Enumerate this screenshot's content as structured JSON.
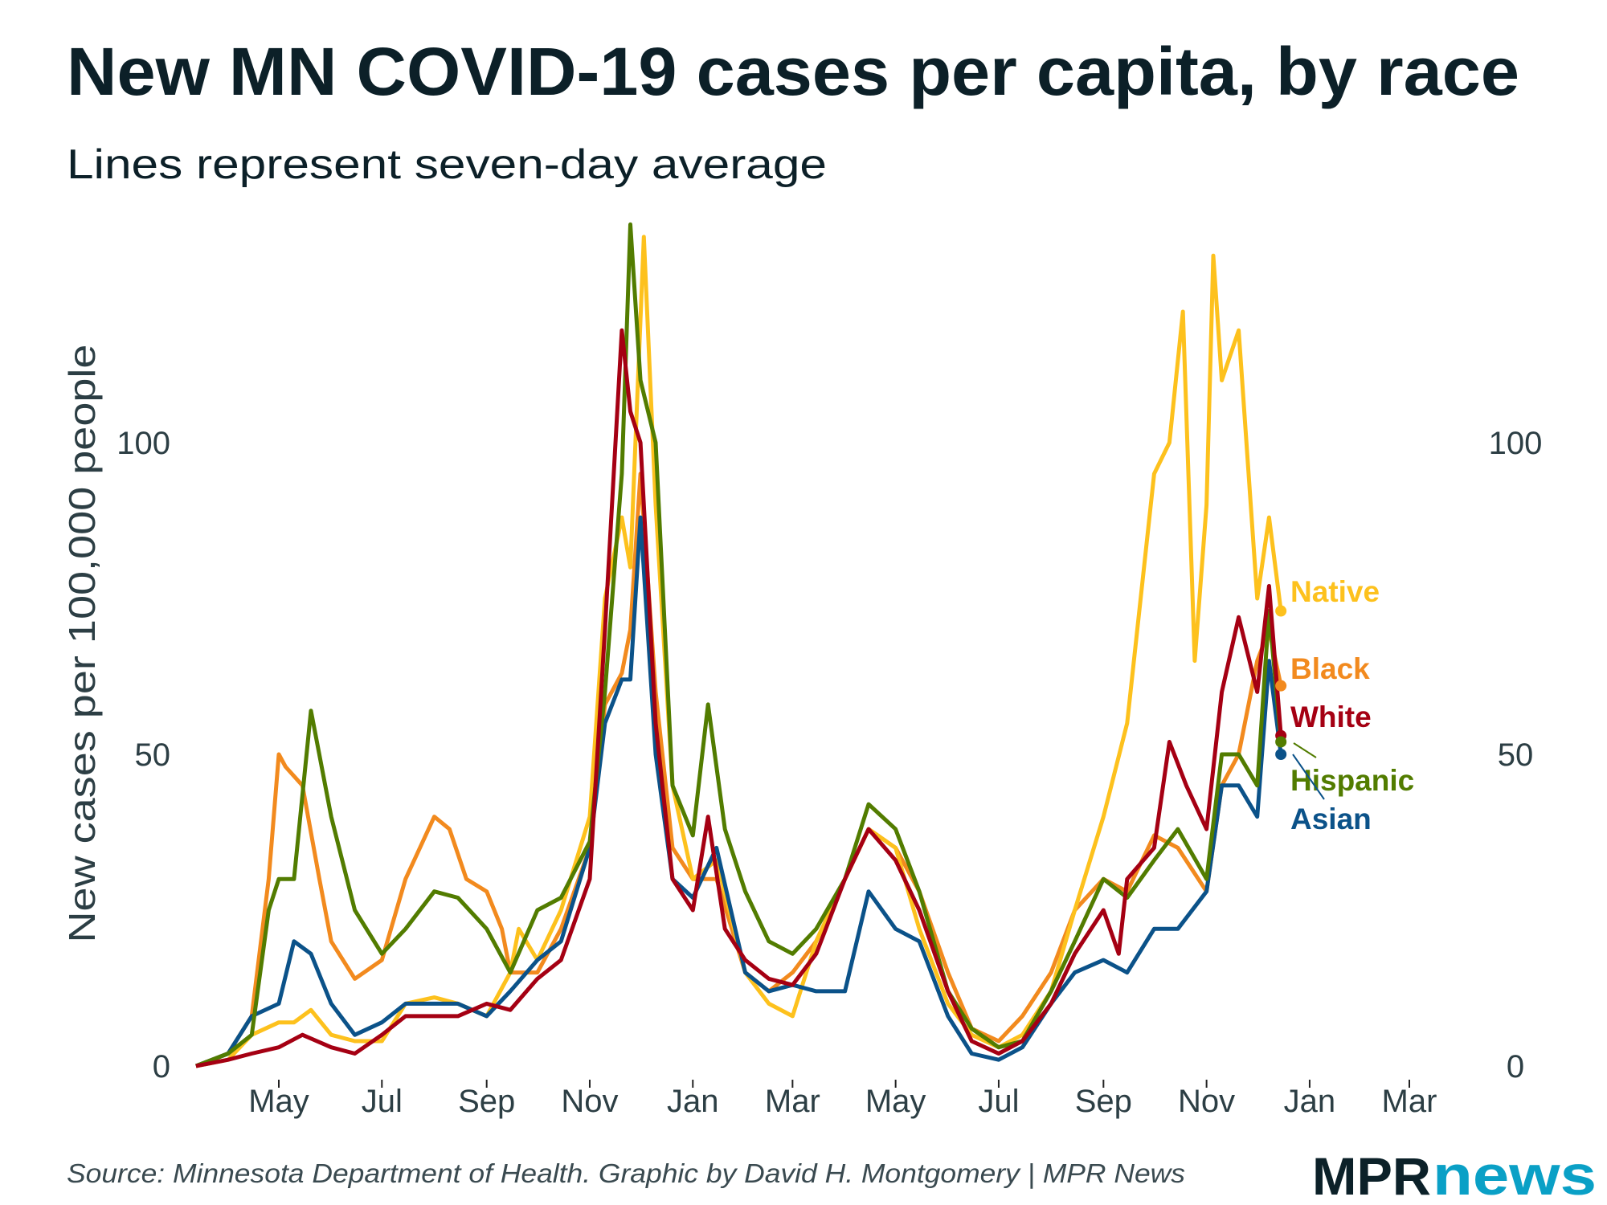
{
  "chart_data": {
    "type": "line",
    "title": "New MN COVID-19 cases per capita, by race",
    "subtitle": "Lines represent seven-day average",
    "ylabel": "New cases per 100,000 people",
    "xlabel": "",
    "ylim": [
      0,
      135
    ],
    "xlim": [
      "2020-03-13",
      "2022-03-31"
    ],
    "y_ticks": [
      "0",
      "50",
      "100"
    ],
    "y_tick_values": [
      0,
      50,
      100
    ],
    "x_ticks": [
      {
        "date": "2020-05-01",
        "label": "May"
      },
      {
        "date": "2020-07-01",
        "label": "Jul"
      },
      {
        "date": "2020-09-01",
        "label": "Sep"
      },
      {
        "date": "2020-11-01",
        "label": "Nov"
      },
      {
        "date": "2021-01-01",
        "label": "Jan"
      },
      {
        "date": "2021-03-01",
        "label": "Mar"
      },
      {
        "date": "2021-05-01",
        "label": "May"
      },
      {
        "date": "2021-07-01",
        "label": "Jul"
      },
      {
        "date": "2021-09-01",
        "label": "Sep"
      },
      {
        "date": "2021-11-01",
        "label": "Nov"
      },
      {
        "date": "2022-01-01",
        "label": "Jan"
      },
      {
        "date": "2022-03-01",
        "label": "Mar"
      }
    ],
    "grid": false,
    "legend": "direct labels at line ends (right)",
    "series": [
      {
        "name": "Native",
        "color": "#fdc11d",
        "points": [
          [
            "2020-03-13",
            0
          ],
          [
            "2020-04-01",
            1
          ],
          [
            "2020-04-15",
            5
          ],
          [
            "2020-05-01",
            7
          ],
          [
            "2020-05-10",
            7
          ],
          [
            "2020-05-20",
            9
          ],
          [
            "2020-06-01",
            5
          ],
          [
            "2020-06-15",
            4
          ],
          [
            "2020-07-01",
            4
          ],
          [
            "2020-07-15",
            10
          ],
          [
            "2020-08-01",
            11
          ],
          [
            "2020-08-15",
            10
          ],
          [
            "2020-09-01",
            8
          ],
          [
            "2020-09-15",
            15
          ],
          [
            "2020-09-20",
            22
          ],
          [
            "2020-10-01",
            17
          ],
          [
            "2020-10-15",
            25
          ],
          [
            "2020-11-01",
            40
          ],
          [
            "2020-11-10",
            75
          ],
          [
            "2020-11-20",
            88
          ],
          [
            "2020-11-25",
            80
          ],
          [
            "2020-12-03",
            133
          ],
          [
            "2020-12-10",
            90
          ],
          [
            "2020-12-20",
            45
          ],
          [
            "2021-01-01",
            30
          ],
          [
            "2021-01-15",
            33
          ],
          [
            "2021-02-01",
            15
          ],
          [
            "2021-02-15",
            10
          ],
          [
            "2021-03-01",
            8
          ],
          [
            "2021-03-15",
            20
          ],
          [
            "2021-04-01",
            30
          ],
          [
            "2021-04-15",
            38
          ],
          [
            "2021-05-01",
            35
          ],
          [
            "2021-05-15",
            22
          ],
          [
            "2021-06-01",
            10
          ],
          [
            "2021-06-15",
            5
          ],
          [
            "2021-07-01",
            3
          ],
          [
            "2021-07-15",
            5
          ],
          [
            "2021-08-01",
            12
          ],
          [
            "2021-08-15",
            25
          ],
          [
            "2021-09-01",
            40
          ],
          [
            "2021-09-15",
            55
          ],
          [
            "2021-10-01",
            95
          ],
          [
            "2021-10-10",
            100
          ],
          [
            "2021-10-18",
            121
          ],
          [
            "2021-10-25",
            65
          ],
          [
            "2021-11-01",
            90
          ],
          [
            "2021-11-05",
            130
          ],
          [
            "2021-11-10",
            110
          ],
          [
            "2021-11-20",
            118
          ],
          [
            "2021-12-01",
            75
          ],
          [
            "2021-12-08",
            88
          ],
          [
            "2021-12-15",
            73
          ]
        ]
      },
      {
        "name": "Black",
        "color": "#f28a1e",
        "points": [
          [
            "2020-03-13",
            0
          ],
          [
            "2020-04-01",
            2
          ],
          [
            "2020-04-15",
            8
          ],
          [
            "2020-04-25",
            30
          ],
          [
            "2020-05-01",
            50
          ],
          [
            "2020-05-05",
            48
          ],
          [
            "2020-05-15",
            45
          ],
          [
            "2020-05-25",
            30
          ],
          [
            "2020-06-01",
            20
          ],
          [
            "2020-06-15",
            14
          ],
          [
            "2020-07-01",
            17
          ],
          [
            "2020-07-15",
            30
          ],
          [
            "2020-08-01",
            40
          ],
          [
            "2020-08-10",
            38
          ],
          [
            "2020-08-20",
            30
          ],
          [
            "2020-09-01",
            28
          ],
          [
            "2020-09-10",
            22
          ],
          [
            "2020-09-15",
            15
          ],
          [
            "2020-10-01",
            15
          ],
          [
            "2020-10-15",
            22
          ],
          [
            "2020-11-01",
            35
          ],
          [
            "2020-11-10",
            58
          ],
          [
            "2020-11-20",
            63
          ],
          [
            "2020-11-25",
            70
          ],
          [
            "2020-12-01",
            95
          ],
          [
            "2020-12-10",
            60
          ],
          [
            "2020-12-20",
            35
          ],
          [
            "2021-01-01",
            30
          ],
          [
            "2021-01-15",
            30
          ],
          [
            "2021-02-01",
            15
          ],
          [
            "2021-02-15",
            12
          ],
          [
            "2021-03-01",
            15
          ],
          [
            "2021-03-15",
            20
          ],
          [
            "2021-04-01",
            30
          ],
          [
            "2021-04-15",
            38
          ],
          [
            "2021-05-01",
            35
          ],
          [
            "2021-05-15",
            28
          ],
          [
            "2021-06-01",
            15
          ],
          [
            "2021-06-15",
            6
          ],
          [
            "2021-07-01",
            4
          ],
          [
            "2021-07-15",
            8
          ],
          [
            "2021-08-01",
            15
          ],
          [
            "2021-08-15",
            25
          ],
          [
            "2021-09-01",
            30
          ],
          [
            "2021-09-15",
            28
          ],
          [
            "2021-10-01",
            37
          ],
          [
            "2021-10-15",
            35
          ],
          [
            "2021-11-01",
            28
          ],
          [
            "2021-11-10",
            45
          ],
          [
            "2021-11-20",
            50
          ],
          [
            "2021-12-01",
            65
          ],
          [
            "2021-12-08",
            70
          ],
          [
            "2021-12-15",
            61
          ]
        ]
      },
      {
        "name": "White",
        "color": "#a50013",
        "points": [
          [
            "2020-03-13",
            0
          ],
          [
            "2020-04-01",
            1
          ],
          [
            "2020-04-15",
            2
          ],
          [
            "2020-05-01",
            3
          ],
          [
            "2020-05-15",
            5
          ],
          [
            "2020-06-01",
            3
          ],
          [
            "2020-06-15",
            2
          ],
          [
            "2020-07-01",
            5
          ],
          [
            "2020-07-15",
            8
          ],
          [
            "2020-08-01",
            8
          ],
          [
            "2020-08-15",
            8
          ],
          [
            "2020-09-01",
            10
          ],
          [
            "2020-09-15",
            9
          ],
          [
            "2020-10-01",
            14
          ],
          [
            "2020-10-15",
            17
          ],
          [
            "2020-11-01",
            30
          ],
          [
            "2020-11-10",
            70
          ],
          [
            "2020-11-20",
            118
          ],
          [
            "2020-11-25",
            105
          ],
          [
            "2020-12-01",
            100
          ],
          [
            "2020-12-10",
            55
          ],
          [
            "2020-12-20",
            30
          ],
          [
            "2021-01-01",
            25
          ],
          [
            "2021-01-10",
            40
          ],
          [
            "2021-01-20",
            22
          ],
          [
            "2021-02-01",
            17
          ],
          [
            "2021-02-15",
            14
          ],
          [
            "2021-03-01",
            13
          ],
          [
            "2021-03-15",
            18
          ],
          [
            "2021-04-01",
            30
          ],
          [
            "2021-04-15",
            38
          ],
          [
            "2021-05-01",
            33
          ],
          [
            "2021-05-15",
            25
          ],
          [
            "2021-06-01",
            12
          ],
          [
            "2021-06-15",
            4
          ],
          [
            "2021-07-01",
            2
          ],
          [
            "2021-07-15",
            4
          ],
          [
            "2021-08-01",
            10
          ],
          [
            "2021-08-15",
            18
          ],
          [
            "2021-09-01",
            25
          ],
          [
            "2021-09-10",
            18
          ],
          [
            "2021-09-15",
            30
          ],
          [
            "2021-10-01",
            35
          ],
          [
            "2021-10-10",
            52
          ],
          [
            "2021-10-20",
            45
          ],
          [
            "2021-11-01",
            38
          ],
          [
            "2021-11-10",
            60
          ],
          [
            "2021-11-20",
            72
          ],
          [
            "2021-12-01",
            60
          ],
          [
            "2021-12-08",
            77
          ],
          [
            "2021-12-15",
            53
          ]
        ]
      },
      {
        "name": "Hispanic",
        "color": "#527c00",
        "points": [
          [
            "2020-03-13",
            0
          ],
          [
            "2020-04-01",
            2
          ],
          [
            "2020-04-15",
            5
          ],
          [
            "2020-04-25",
            25
          ],
          [
            "2020-05-01",
            30
          ],
          [
            "2020-05-10",
            30
          ],
          [
            "2020-05-20",
            57
          ],
          [
            "2020-06-01",
            40
          ],
          [
            "2020-06-15",
            25
          ],
          [
            "2020-07-01",
            18
          ],
          [
            "2020-07-15",
            22
          ],
          [
            "2020-08-01",
            28
          ],
          [
            "2020-08-15",
            27
          ],
          [
            "2020-09-01",
            22
          ],
          [
            "2020-09-15",
            15
          ],
          [
            "2020-10-01",
            25
          ],
          [
            "2020-10-15",
            27
          ],
          [
            "2020-11-01",
            36
          ],
          [
            "2020-11-10",
            60
          ],
          [
            "2020-11-20",
            95
          ],
          [
            "2020-11-25",
            135
          ],
          [
            "2020-12-01",
            110
          ],
          [
            "2020-12-10",
            100
          ],
          [
            "2020-12-20",
            45
          ],
          [
            "2021-01-01",
            37
          ],
          [
            "2021-01-10",
            58
          ],
          [
            "2021-01-20",
            38
          ],
          [
            "2021-02-01",
            28
          ],
          [
            "2021-02-15",
            20
          ],
          [
            "2021-03-01",
            18
          ],
          [
            "2021-03-15",
            22
          ],
          [
            "2021-04-01",
            30
          ],
          [
            "2021-04-15",
            42
          ],
          [
            "2021-05-01",
            38
          ],
          [
            "2021-05-15",
            28
          ],
          [
            "2021-06-01",
            12
          ],
          [
            "2021-06-15",
            6
          ],
          [
            "2021-07-01",
            3
          ],
          [
            "2021-07-15",
            4
          ],
          [
            "2021-08-01",
            12
          ],
          [
            "2021-08-15",
            20
          ],
          [
            "2021-09-01",
            30
          ],
          [
            "2021-09-15",
            27
          ],
          [
            "2021-10-01",
            33
          ],
          [
            "2021-10-15",
            38
          ],
          [
            "2021-11-01",
            30
          ],
          [
            "2021-11-10",
            50
          ],
          [
            "2021-11-20",
            50
          ],
          [
            "2021-12-01",
            45
          ],
          [
            "2021-12-08",
            73
          ],
          [
            "2021-12-15",
            52
          ]
        ]
      },
      {
        "name": "Asian",
        "color": "#0b5289",
        "points": [
          [
            "2020-03-13",
            0
          ],
          [
            "2020-04-01",
            2
          ],
          [
            "2020-04-15",
            8
          ],
          [
            "2020-05-01",
            10
          ],
          [
            "2020-05-10",
            20
          ],
          [
            "2020-05-20",
            18
          ],
          [
            "2020-06-01",
            10
          ],
          [
            "2020-06-15",
            5
          ],
          [
            "2020-07-01",
            7
          ],
          [
            "2020-07-15",
            10
          ],
          [
            "2020-08-01",
            10
          ],
          [
            "2020-08-15",
            10
          ],
          [
            "2020-09-01",
            8
          ],
          [
            "2020-09-15",
            12
          ],
          [
            "2020-10-01",
            17
          ],
          [
            "2020-10-15",
            20
          ],
          [
            "2020-11-01",
            35
          ],
          [
            "2020-11-10",
            55
          ],
          [
            "2020-11-20",
            62
          ],
          [
            "2020-11-25",
            62
          ],
          [
            "2020-12-01",
            88
          ],
          [
            "2020-12-10",
            50
          ],
          [
            "2020-12-20",
            30
          ],
          [
            "2021-01-01",
            27
          ],
          [
            "2021-01-15",
            35
          ],
          [
            "2021-02-01",
            15
          ],
          [
            "2021-02-15",
            12
          ],
          [
            "2021-03-01",
            13
          ],
          [
            "2021-03-15",
            12
          ],
          [
            "2021-04-01",
            12
          ],
          [
            "2021-04-15",
            28
          ],
          [
            "2021-05-01",
            22
          ],
          [
            "2021-05-15",
            20
          ],
          [
            "2021-06-01",
            8
          ],
          [
            "2021-06-15",
            2
          ],
          [
            "2021-07-01",
            1
          ],
          [
            "2021-07-15",
            3
          ],
          [
            "2021-08-01",
            10
          ],
          [
            "2021-08-15",
            15
          ],
          [
            "2021-09-01",
            17
          ],
          [
            "2021-09-15",
            15
          ],
          [
            "2021-10-01",
            22
          ],
          [
            "2021-10-15",
            22
          ],
          [
            "2021-11-01",
            28
          ],
          [
            "2021-11-10",
            45
          ],
          [
            "2021-11-20",
            45
          ],
          [
            "2021-12-01",
            40
          ],
          [
            "2021-12-08",
            65
          ],
          [
            "2021-12-15",
            50
          ]
        ]
      }
    ]
  },
  "footer": {
    "source": "Source: Minnesota Department of Health. Graphic by David H. Montgomery | MPR News",
    "logo_text": "MPRnews"
  },
  "colors": {
    "text": "#0c2028",
    "axis_text": "#2c3e44",
    "logo_dark": "#0c2129",
    "logo_accent": "#0aa0c6"
  }
}
